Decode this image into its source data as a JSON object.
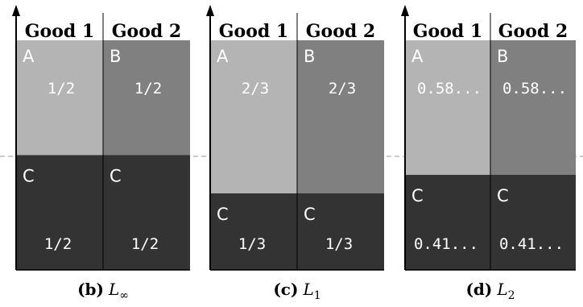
{
  "panels": [
    {
      "id": "b",
      "caption": {
        "label": "(b)",
        "math": "L",
        "sub": "∞"
      },
      "goods": [
        "Good 1",
        "Good 2"
      ],
      "cells": [
        {
          "good": 1,
          "agent": "A",
          "share_label": "1/2",
          "share": 0.5,
          "color": "#b4b4b4"
        },
        {
          "good": 2,
          "agent": "B",
          "share_label": "1/2",
          "share": 0.5,
          "color": "#808080"
        }
      ],
      "bottom": [
        {
          "good": 1,
          "agent": "C",
          "share_label": "1/2",
          "share": 0.5,
          "color": "#333333"
        },
        {
          "good": 2,
          "agent": "C",
          "share_label": "1/2",
          "share": 0.5,
          "color": "#333333"
        }
      ]
    },
    {
      "id": "c",
      "caption": {
        "label": "(c)",
        "math": "L",
        "sub": "1"
      },
      "goods": [
        "Good 1",
        "Good 2"
      ],
      "cells": [
        {
          "good": 1,
          "agent": "A",
          "share_label": "2/3",
          "share": 0.6667,
          "color": "#b4b4b4"
        },
        {
          "good": 2,
          "agent": "B",
          "share_label": "2/3",
          "share": 0.6667,
          "color": "#808080"
        }
      ],
      "bottom": [
        {
          "good": 1,
          "agent": "C",
          "share_label": "1/3",
          "share": 0.3333,
          "color": "#333333"
        },
        {
          "good": 2,
          "agent": "C",
          "share_label": "1/3",
          "share": 0.3333,
          "color": "#333333"
        }
      ]
    },
    {
      "id": "d",
      "caption": {
        "label": "(d)",
        "math": "L",
        "sub": "2"
      },
      "goods": [
        "Good 1",
        "Good 2"
      ],
      "cells": [
        {
          "good": 1,
          "agent": "A",
          "share_label": "0.58...",
          "share": 0.586,
          "color": "#b4b4b4"
        },
        {
          "good": 2,
          "agent": "B",
          "share_label": "0.58...",
          "share": 0.586,
          "color": "#808080"
        }
      ],
      "bottom": [
        {
          "good": 1,
          "agent": "C",
          "share_label": "0.41...",
          "share": 0.414,
          "color": "#333333"
        },
        {
          "good": 2,
          "agent": "C",
          "share_label": "0.41...",
          "share": 0.414,
          "color": "#333333"
        }
      ]
    }
  ],
  "colors": {
    "good1_top": "#b4b4b4",
    "good2_top": "#808080",
    "bottom": "#333333",
    "axis": "#000000",
    "dashed_line": "#999999"
  }
}
